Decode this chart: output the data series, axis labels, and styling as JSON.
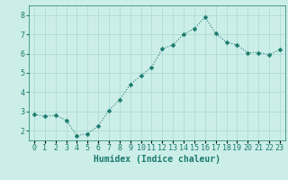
{
  "x": [
    0,
    1,
    2,
    3,
    4,
    5,
    6,
    7,
    8,
    9,
    10,
    11,
    12,
    13,
    14,
    15,
    16,
    17,
    18,
    19,
    20,
    21,
    22,
    23
  ],
  "y": [
    2.85,
    2.75,
    2.8,
    2.55,
    1.75,
    1.85,
    2.25,
    3.05,
    3.6,
    4.4,
    4.85,
    5.3,
    6.25,
    6.45,
    7.0,
    7.3,
    7.9,
    7.05,
    6.6,
    6.45,
    6.05,
    6.05,
    5.95,
    6.2
  ],
  "bg_color": "#cceee8",
  "line_color": "#1a7a6e",
  "marker_color": "#1a7a6e",
  "grid_color": "#a8d8d0",
  "xlabel": "Humidex (Indice chaleur)",
  "ylim": [
    1.5,
    8.5
  ],
  "xlim": [
    -0.5,
    23.5
  ],
  "yticks": [
    2,
    3,
    4,
    5,
    6,
    7,
    8
  ],
  "xtick_labels": [
    "0",
    "1",
    "2",
    "3",
    "4",
    "5",
    "6",
    "7",
    "8",
    "9",
    "10",
    "11",
    "12",
    "13",
    "14",
    "15",
    "16",
    "17",
    "18",
    "19",
    "20",
    "21",
    "22",
    "23"
  ],
  "xlabel_fontsize": 7,
  "tick_fontsize": 6,
  "line_width": 0.8,
  "marker_size": 2.5
}
